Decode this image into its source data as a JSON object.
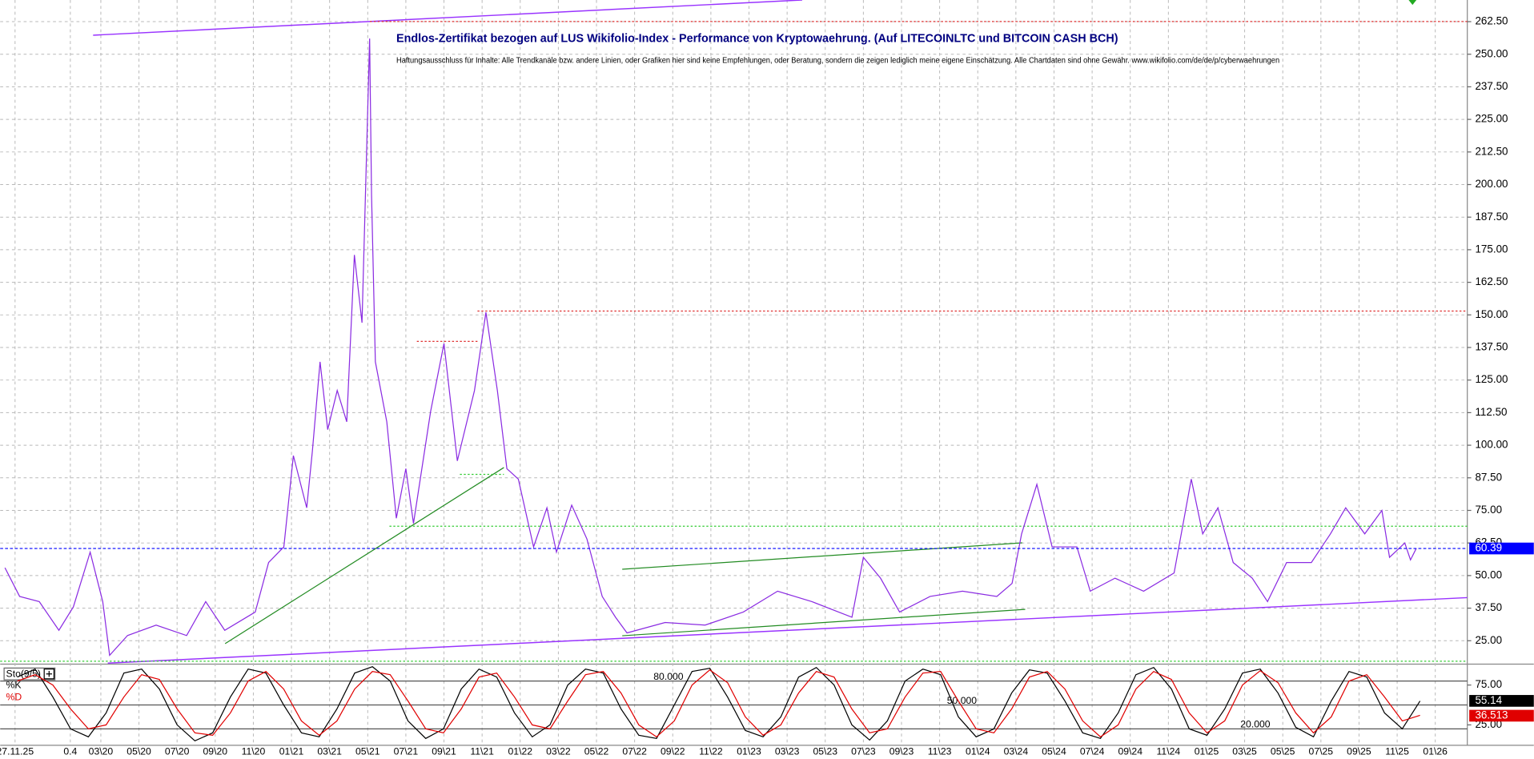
{
  "chart_data": [
    {
      "type": "line",
      "title": "Endlos-Zertifikat bezogen auf LUS Wikifolio-Index - Performance von Kryptowaehrung. (Auf LITECOINLTC und BITCOIN CASH BCH)",
      "subtitle": "Haftungsausschluss für Inhalte: Alle Trendkanäle bzw. andere Linien, oder Grafiken hier sind keine Empfehlungen, oder Beratung, sondern die zeigen lediglich meine eigene Einschätzung. Alle Chartdaten sind ohne Gewähr. www.wikifolio.com/de/de/p/cyberwaehrungen",
      "x": [
        -3.03,
        -2.26,
        -1.23,
        -0.2,
        0.56,
        1.44,
        2.1,
        2.46,
        3.4,
        4.9,
        6.5,
        7.5,
        8.5,
        10.1,
        10.8,
        11.6,
        12.1,
        12.8,
        13.1,
        13.5,
        13.9,
        14.4,
        14.9,
        15.3,
        15.7,
        16.1,
        16.2,
        16.4,
        17.0,
        17.5,
        18.0,
        18.4,
        19.3,
        20.0,
        20.7,
        21.6,
        22.2,
        22.8,
        23.3,
        23.9,
        24.7,
        25.4,
        25.9,
        26.7,
        27.5,
        28.3,
        29.0,
        29.6,
        31.6,
        33.7,
        35.7,
        37.5,
        39.3,
        41.4,
        42.0,
        42.9,
        43.9,
        45.5,
        47.2,
        49.0,
        49.8,
        50.3,
        51.1,
        51.9,
        53.2,
        53.9,
        55.2,
        56.7,
        58.3,
        59.2,
        59.8,
        60.6,
        61.4,
        62.4,
        63.2,
        64.2,
        65.5,
        66.5,
        67.3,
        68.3,
        69.2,
        69.6,
        70.4,
        70.7,
        71.0
      ],
      "series": [
        {
          "color": "#8a2be2",
          "values": [
            53,
            42,
            40,
            29,
            38,
            59,
            40,
            19.4,
            27,
            31,
            27,
            40,
            29,
            36,
            55,
            61,
            96,
            76,
            98,
            132,
            106,
            121,
            109,
            173,
            147,
            256,
            196,
            132,
            109,
            72,
            91,
            70,
            113,
            139,
            94,
            121,
            151,
            121,
            91,
            87,
            61,
            76,
            59,
            77,
            64,
            42,
            34,
            28,
            32,
            31,
            36,
            44,
            40,
            34,
            57,
            49,
            36,
            42,
            44,
            42,
            47,
            66,
            85,
            61,
            61,
            44,
            49,
            44,
            51,
            87,
            66,
            76,
            55,
            49,
            40,
            55,
            55,
            66,
            76,
            66,
            75,
            57,
            62.5,
            56,
            60.39
          ]
        }
      ],
      "last_value": 60.39,
      "last_color": "#0000ff",
      "xlim": [
        -3.28,
        73.68
      ],
      "ylim": [
        16.4,
        270.8
      ],
      "xticks": [
        {
          "value": -2.5,
          "label": "27.11.25"
        },
        0.4,
        {
          "value": 2,
          "label": "03\\20"
        },
        {
          "value": 4,
          "label": "05\\20"
        },
        {
          "value": 6,
          "label": "07\\20"
        },
        {
          "value": 8,
          "label": "09\\20"
        },
        {
          "value": 10,
          "label": "11\\20"
        },
        {
          "value": 12,
          "label": "01\\21"
        },
        {
          "value": 14,
          "label": "03\\21"
        },
        {
          "value": 16,
          "label": "05\\21"
        },
        {
          "value": 18,
          "label": "07\\21"
        },
        {
          "value": 20,
          "label": "09\\21"
        },
        {
          "value": 22,
          "label": "11\\21"
        },
        {
          "value": 24,
          "label": "01\\22"
        },
        {
          "value": 26,
          "label": "03\\22"
        },
        {
          "value": 28,
          "label": "05\\22"
        },
        {
          "value": 30,
          "label": "07\\22"
        },
        {
          "value": 32,
          "label": "09\\22"
        },
        {
          "value": 34,
          "label": "11\\22"
        },
        {
          "value": 36,
          "label": "01\\23"
        },
        {
          "value": 38,
          "label": "03\\23"
        },
        {
          "value": 40,
          "label": "05\\23"
        },
        {
          "value": 42,
          "label": "07\\23"
        },
        {
          "value": 44,
          "label": "09\\23"
        },
        {
          "value": 46,
          "label": "11\\23"
        },
        {
          "value": 48,
          "label": "01\\24"
        },
        {
          "value": 50,
          "label": "03\\24"
        },
        {
          "value": 52,
          "label": "05\\24"
        },
        {
          "value": 54,
          "label": "07\\24"
        },
        {
          "value": 56,
          "label": "09\\24"
        },
        {
          "value": 58,
          "label": "11\\24"
        },
        {
          "value": 60,
          "label": "01\\25"
        },
        {
          "value": 62,
          "label": "03\\25"
        },
        {
          "value": 64,
          "label": "05\\25"
        },
        {
          "value": 66,
          "label": "07\\25"
        },
        {
          "value": 68,
          "label": "09\\25"
        },
        {
          "value": 70,
          "label": "11\\25"
        },
        {
          "value": 72,
          "label": "01\\26"
        }
      ],
      "yticks": [
        {
          "value": 25,
          "label": "25.00"
        },
        {
          "value": 37.5,
          "label": "37.50"
        },
        {
          "value": 50,
          "label": "50.00"
        },
        {
          "value": 62.5,
          "label": "62.50"
        },
        {
          "value": 75,
          "label": "75.00"
        },
        {
          "value": 87.5,
          "label": "87.50"
        },
        {
          "value": 100,
          "label": "100.00"
        },
        {
          "value": 112.5,
          "label": "112.50"
        },
        {
          "value": 125,
          "label": "125.00"
        },
        {
          "value": 137.5,
          "label": "137.50"
        },
        {
          "value": 150,
          "label": "150.00"
        },
        {
          "value": 162.5,
          "label": "162.50"
        },
        {
          "value": 175,
          "label": "175.00"
        },
        {
          "value": 187.5,
          "label": "187.50"
        },
        {
          "value": 200,
          "label": "200.00"
        },
        {
          "value": 212.5,
          "label": "212.50"
        },
        {
          "value": 225,
          "label": "225.00"
        },
        {
          "value": 237.5,
          "label": "237.50"
        },
        {
          "value": 250,
          "label": "250.00"
        },
        {
          "value": 262.5,
          "label": "262.50"
        }
      ],
      "grid": true
    },
    {
      "type": "line",
      "title": "Sto(9/5)",
      "series": [
        {
          "name": "%K",
          "color": "#000000",
          "last": 55.14,
          "values": [
            85,
            95,
            60,
            20,
            10,
            40,
            90,
            95,
            70,
            25,
            5,
            15,
            60,
            95,
            90,
            50,
            15,
            10,
            45,
            90,
            98,
            80,
            30,
            8,
            20,
            70,
            95,
            85,
            40,
            10,
            25,
            75,
            95,
            90,
            45,
            12,
            8,
            50,
            92,
            96,
            60,
            18,
            10,
            35,
            85,
            97,
            75,
            25,
            6,
            30,
            80,
            95,
            88,
            35,
            10,
            20,
            65,
            94,
            90,
            55,
            15,
            8,
            40,
            88,
            97,
            70,
            20,
            12,
            45,
            90,
            95,
            65,
            22,
            10,
            55,
            92,
            85,
            40,
            20,
            55
          ]
        },
        {
          "name": "%D",
          "color": "#e00000",
          "last": 36.513,
          "values": [
            80,
            88,
            75,
            45,
            20,
            25,
            60,
            88,
            82,
            45,
            15,
            12,
            40,
            80,
            92,
            70,
            30,
            12,
            30,
            70,
            92,
            88,
            55,
            20,
            15,
            45,
            85,
            90,
            60,
            25,
            20,
            55,
            88,
            92,
            65,
            25,
            10,
            30,
            75,
            94,
            78,
            35,
            12,
            25,
            65,
            92,
            85,
            45,
            15,
            20,
            60,
            90,
            92,
            55,
            20,
            15,
            45,
            85,
            92,
            70,
            30,
            10,
            25,
            70,
            92,
            82,
            40,
            15,
            30,
            75,
            93,
            78,
            40,
            15,
            35,
            80,
            88,
            60,
            30,
            37
          ]
        }
      ],
      "levels": [
        {
          "value": 80,
          "label": "80.000"
        },
        {
          "value": 50,
          "label": "50.000"
        },
        {
          "value": 20,
          "label": "20.000"
        }
      ],
      "ylim": [
        0,
        100
      ],
      "yticks": [
        {
          "value": 25,
          "label": "25.00"
        },
        {
          "value": 75,
          "label": "75.00"
        }
      ]
    }
  ]
}
